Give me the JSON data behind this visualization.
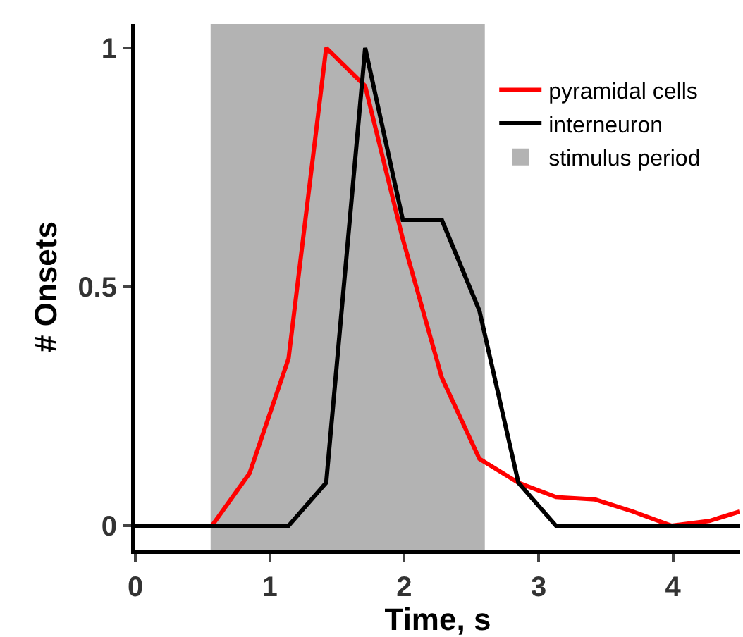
{
  "chart_data": {
    "type": "line",
    "xlabel": "Time, s",
    "ylabel": "# Onsets",
    "series": [
      {
        "name": "pyramidal cells",
        "color": "#ff0000",
        "x": [
          0,
          0.57,
          0.85,
          1.14,
          1.42,
          1.71,
          1.99,
          2.28,
          2.56,
          2.85,
          3.13,
          3.42,
          3.7,
          3.99,
          4.27,
          4.5
        ],
        "values": [
          0,
          0,
          0.11,
          0.35,
          1.0,
          0.92,
          0.6,
          0.31,
          0.14,
          0.09,
          0.06,
          0.055,
          0.03,
          0,
          0.01,
          0.03
        ]
      },
      {
        "name": "interneuron",
        "color": "#000000",
        "x": [
          0,
          1.14,
          1.42,
          1.71,
          1.99,
          2.28,
          2.56,
          2.85,
          3.13,
          4.5
        ],
        "values": [
          0,
          0,
          0.09,
          1.0,
          0.64,
          0.64,
          0.45,
          0.09,
          0,
          0
        ]
      }
    ],
    "bands": [
      {
        "axis": "x",
        "from": 0.56,
        "to": 2.6,
        "label": "stimulus period",
        "color": "#b3b3b3"
      }
    ],
    "xlim": [
      0,
      4.5
    ],
    "ylim": [
      -0.05,
      1.05
    ],
    "xticks": [
      0,
      1,
      2,
      3,
      4
    ],
    "yticks": [
      0,
      0.5,
      1
    ],
    "grid": false,
    "legend": "top right",
    "marker": "none",
    "line_style": "solid"
  }
}
